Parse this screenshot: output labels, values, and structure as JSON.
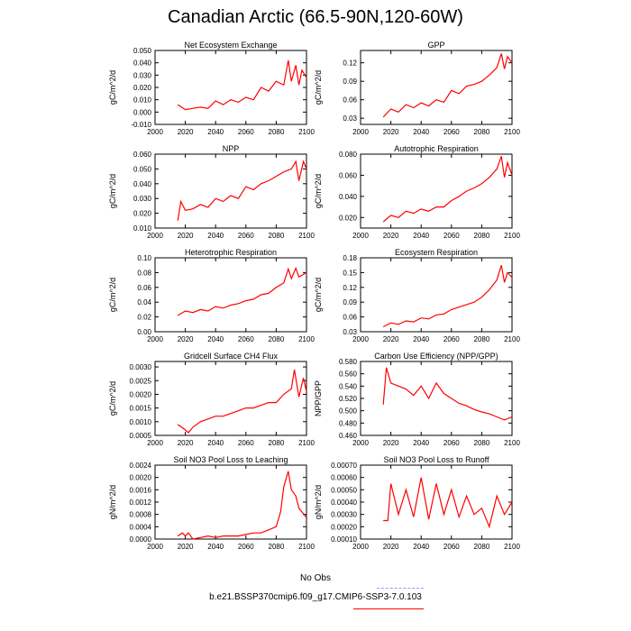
{
  "title": "Canadian Arctic (66.5-90N,120-60W)",
  "colors": {
    "series": "#ff0000",
    "obs": "#9999ff",
    "axis": "#000000"
  },
  "legend": {
    "obs_label": "No Obs",
    "model_label": "b.e21.BSSP370cmip6.f09_g17.CMIP6-SSP3-7.0.103"
  },
  "chart_data": [
    {
      "type": "line",
      "title": "Net Ecosystem Exchange",
      "ylabel": "gC/m^2/d",
      "xlim": [
        2000,
        2100
      ],
      "ylim": [
        -0.01,
        0.05
      ],
      "xticks": [
        "2000",
        "2020",
        "2040",
        "2060",
        "2080",
        "2100"
      ],
      "yticks": [
        "-0.010",
        "0.000",
        "0.010",
        "0.020",
        "0.030",
        "0.040",
        "0.050"
      ],
      "x": [
        2015,
        2020,
        2025,
        2030,
        2035,
        2040,
        2045,
        2050,
        2055,
        2060,
        2065,
        2070,
        2075,
        2080,
        2085,
        2088,
        2090,
        2093,
        2095,
        2097,
        2100
      ],
      "values": [
        0.006,
        0.002,
        0.003,
        0.004,
        0.003,
        0.009,
        0.006,
        0.01,
        0.008,
        0.012,
        0.01,
        0.02,
        0.017,
        0.025,
        0.022,
        0.042,
        0.025,
        0.038,
        0.022,
        0.034,
        0.028
      ]
    },
    {
      "type": "line",
      "title": "GPP",
      "ylabel": "gC/m^2/d",
      "xlim": [
        2000,
        2100
      ],
      "ylim": [
        0.02,
        0.14
      ],
      "xticks": [
        "2000",
        "2020",
        "2040",
        "2060",
        "2080",
        "2100"
      ],
      "yticks": [
        "0.03",
        "0.06",
        "0.09",
        "0.12"
      ],
      "x": [
        2015,
        2020,
        2025,
        2030,
        2035,
        2040,
        2045,
        2050,
        2055,
        2060,
        2065,
        2070,
        2075,
        2080,
        2085,
        2090,
        2093,
        2095,
        2097,
        2100
      ],
      "values": [
        0.032,
        0.045,
        0.04,
        0.052,
        0.047,
        0.055,
        0.05,
        0.06,
        0.056,
        0.075,
        0.07,
        0.082,
        0.085,
        0.09,
        0.1,
        0.112,
        0.135,
        0.11,
        0.13,
        0.12
      ]
    },
    {
      "type": "line",
      "title": "NPP",
      "ylabel": "gC/m^2/d",
      "xlim": [
        2000,
        2100
      ],
      "ylim": [
        0.01,
        0.06
      ],
      "xticks": [
        "2000",
        "2020",
        "2040",
        "2060",
        "2080",
        "2100"
      ],
      "yticks": [
        "0.010",
        "0.020",
        "0.030",
        "0.040",
        "0.050",
        "0.060"
      ],
      "x": [
        2015,
        2017,
        2020,
        2025,
        2030,
        2035,
        2040,
        2045,
        2050,
        2055,
        2060,
        2065,
        2070,
        2075,
        2080,
        2085,
        2090,
        2093,
        2095,
        2098,
        2100
      ],
      "values": [
        0.015,
        0.028,
        0.022,
        0.023,
        0.026,
        0.024,
        0.03,
        0.028,
        0.032,
        0.03,
        0.038,
        0.036,
        0.04,
        0.042,
        0.045,
        0.048,
        0.05,
        0.055,
        0.042,
        0.055,
        0.05
      ]
    },
    {
      "type": "line",
      "title": "Autotrophic Respiration",
      "ylabel": "gC/m^2/d",
      "xlim": [
        2000,
        2100
      ],
      "ylim": [
        0.01,
        0.08
      ],
      "xticks": [
        "2000",
        "2020",
        "2040",
        "2060",
        "2080",
        "2100"
      ],
      "yticks": [
        "0.020",
        "0.040",
        "0.060",
        "0.080"
      ],
      "x": [
        2015,
        2020,
        2025,
        2030,
        2035,
        2040,
        2045,
        2050,
        2055,
        2060,
        2065,
        2070,
        2075,
        2080,
        2085,
        2090,
        2093,
        2095,
        2097,
        2100
      ],
      "values": [
        0.016,
        0.022,
        0.02,
        0.026,
        0.024,
        0.028,
        0.026,
        0.03,
        0.03,
        0.036,
        0.04,
        0.045,
        0.048,
        0.052,
        0.058,
        0.066,
        0.078,
        0.058,
        0.072,
        0.06
      ]
    },
    {
      "type": "line",
      "title": "Heterotrophic Respiration",
      "ylabel": "gC/m^2/d",
      "xlim": [
        2000,
        2100
      ],
      "ylim": [
        0.0,
        0.1
      ],
      "xticks": [
        "2000",
        "2020",
        "2040",
        "2060",
        "2080",
        "2100"
      ],
      "yticks": [
        "0.00",
        "0.02",
        "0.04",
        "0.06",
        "0.08",
        "0.10"
      ],
      "x": [
        2015,
        2020,
        2025,
        2030,
        2035,
        2040,
        2045,
        2050,
        2055,
        2060,
        2065,
        2070,
        2075,
        2080,
        2085,
        2088,
        2090,
        2093,
        2095,
        2100
      ],
      "values": [
        0.022,
        0.028,
        0.026,
        0.03,
        0.028,
        0.034,
        0.032,
        0.036,
        0.038,
        0.042,
        0.044,
        0.05,
        0.052,
        0.06,
        0.066,
        0.085,
        0.072,
        0.086,
        0.074,
        0.08
      ]
    },
    {
      "type": "line",
      "title": "Ecosystem Respiration",
      "ylabel": "gC/m^2/d",
      "xlim": [
        2000,
        2100
      ],
      "ylim": [
        0.03,
        0.18
      ],
      "xticks": [
        "2000",
        "2020",
        "2040",
        "2060",
        "2080",
        "2100"
      ],
      "yticks": [
        "0.03",
        "0.06",
        "0.09",
        "0.12",
        "0.15",
        "0.18"
      ],
      "x": [
        2015,
        2020,
        2025,
        2030,
        2035,
        2040,
        2045,
        2050,
        2055,
        2060,
        2065,
        2070,
        2075,
        2080,
        2085,
        2090,
        2093,
        2095,
        2097,
        2100
      ],
      "values": [
        0.04,
        0.048,
        0.045,
        0.052,
        0.05,
        0.058,
        0.056,
        0.064,
        0.066,
        0.075,
        0.08,
        0.085,
        0.09,
        0.1,
        0.115,
        0.135,
        0.165,
        0.13,
        0.15,
        0.14
      ]
    },
    {
      "type": "line",
      "title": "Gridcell Surface CH4 Flux",
      "ylabel": "gC/m^2/d",
      "xlim": [
        2000,
        2100
      ],
      "ylim": [
        0.0005,
        0.0032
      ],
      "xticks": [
        "2000",
        "2020",
        "2040",
        "2060",
        "2080",
        "2100"
      ],
      "yticks": [
        "0.0005",
        "0.0010",
        "0.0015",
        "0.0020",
        "0.0025",
        "0.0030"
      ],
      "x": [
        2015,
        2020,
        2022,
        2025,
        2030,
        2035,
        2040,
        2045,
        2050,
        2055,
        2060,
        2065,
        2070,
        2075,
        2080,
        2085,
        2090,
        2092,
        2095,
        2098,
        2100
      ],
      "values": [
        0.0009,
        0.0007,
        0.0006,
        0.0008,
        0.001,
        0.0011,
        0.0012,
        0.0012,
        0.0013,
        0.0014,
        0.0015,
        0.0015,
        0.0016,
        0.0017,
        0.0017,
        0.002,
        0.0022,
        0.0029,
        0.0019,
        0.0026,
        0.0021
      ]
    },
    {
      "type": "line",
      "title": "Carbon Use Efficiency (NPP/GPP)",
      "ylabel": "NPP/GPP",
      "xlim": [
        2000,
        2100
      ],
      "ylim": [
        0.46,
        0.58
      ],
      "xticks": [
        "2000",
        "2020",
        "2040",
        "2060",
        "2080",
        "2100"
      ],
      "yticks": [
        "0.460",
        "0.480",
        "0.500",
        "0.520",
        "0.540",
        "0.560",
        "0.580"
      ],
      "x": [
        2015,
        2017,
        2020,
        2025,
        2030,
        2035,
        2040,
        2045,
        2050,
        2055,
        2060,
        2065,
        2070,
        2075,
        2080,
        2085,
        2090,
        2095,
        2100
      ],
      "values": [
        0.51,
        0.57,
        0.545,
        0.54,
        0.535,
        0.525,
        0.54,
        0.52,
        0.545,
        0.528,
        0.52,
        0.512,
        0.508,
        0.502,
        0.498,
        0.495,
        0.49,
        0.485,
        0.49
      ]
    },
    {
      "type": "line",
      "title": "Soil NO3 Pool Loss to Leaching",
      "ylabel": "gN/m^2/d",
      "xlim": [
        2000,
        2100
      ],
      "ylim": [
        0.0,
        0.0024
      ],
      "xticks": [
        "2000",
        "2020",
        "2040",
        "2060",
        "2080",
        "2100"
      ],
      "yticks": [
        "0.0000",
        "0.0004",
        "0.0008",
        "0.0012",
        "0.0016",
        "0.0020",
        "0.0024"
      ],
      "x": [
        2015,
        2018,
        2020,
        2022,
        2025,
        2030,
        2035,
        2040,
        2045,
        2050,
        2055,
        2060,
        2065,
        2070,
        2075,
        2080,
        2083,
        2085,
        2088,
        2090,
        2093,
        2095,
        2100
      ],
      "values": [
        0.0001,
        0.0002,
        0.0001,
        0.0002,
        0.0,
        5e-05,
        0.0001,
        5e-05,
        0.0001,
        0.0001,
        0.0001,
        0.00015,
        0.0002,
        0.0002,
        0.0003,
        0.0004,
        0.0009,
        0.0017,
        0.0022,
        0.0016,
        0.0014,
        0.001,
        0.0007
      ]
    },
    {
      "type": "line",
      "title": "Soil NO3 Pool Loss to Runoff",
      "ylabel": "gN/m^2/d",
      "xlim": [
        2000,
        2100
      ],
      "ylim": [
        0.0001,
        0.0007
      ],
      "xticks": [
        "2000",
        "2020",
        "2040",
        "2060",
        "2080",
        "2100"
      ],
      "yticks": [
        "0.00010",
        "0.00020",
        "0.00030",
        "0.00040",
        "0.00050",
        "0.00060",
        "0.00070"
      ],
      "x": [
        2015,
        2018,
        2020,
        2025,
        2030,
        2035,
        2040,
        2045,
        2050,
        2055,
        2060,
        2065,
        2070,
        2075,
        2080,
        2085,
        2090,
        2095,
        2100
      ],
      "values": [
        0.00025,
        0.00025,
        0.00055,
        0.0003,
        0.0005,
        0.00028,
        0.0006,
        0.00026,
        0.00055,
        0.0003,
        0.0005,
        0.00028,
        0.00045,
        0.0003,
        0.00035,
        0.0002,
        0.00045,
        0.0003,
        0.0004
      ]
    }
  ]
}
